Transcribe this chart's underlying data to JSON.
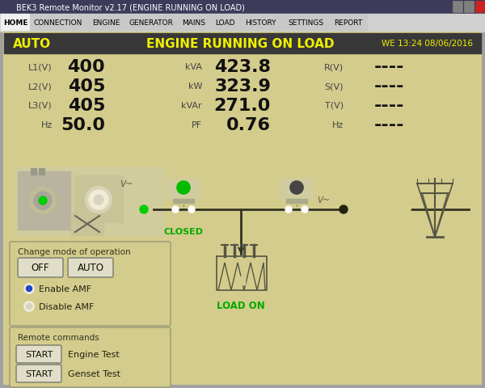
{
  "title_bar": "BEK3 Remote Monitor v2.17 (ENGINE RUNNING ON LOAD)",
  "tabs": [
    "HOME",
    "CONNECTION",
    "ENGINE",
    "GENERATOR",
    "MAINS",
    "LOAD",
    "HISTORY",
    "SETTINGS",
    "REPORT"
  ],
  "active_tab": "HOME",
  "status_text": "ENGINE RUNNING ON LOAD",
  "mode_text": "AUTO",
  "datetime_text": "WE 13:24 08/06/2016",
  "metrics_left": [
    [
      "L1(V)",
      "400"
    ],
    [
      "L2(V)",
      "405"
    ],
    [
      "L3(V)",
      "405"
    ],
    [
      "Hz",
      "50.0"
    ]
  ],
  "metrics_mid": [
    [
      "kVA",
      "423.8"
    ],
    [
      "kW",
      "323.9"
    ],
    [
      "kVAr",
      "271.0"
    ],
    [
      "PF",
      "0.76"
    ]
  ],
  "metrics_right": [
    [
      "R(V)",
      "----"
    ],
    [
      "S(V)",
      "----"
    ],
    [
      "T(V)",
      "----"
    ],
    [
      "Hz",
      "----"
    ]
  ],
  "bg_color": "#d4cc8c",
  "title_bg": "#3c3c5a",
  "status_bar_bg": "#383838",
  "status_bar_fg": "#f0f000",
  "closed_label": "CLOSED",
  "load_label": "LOAD ON",
  "change_mode_label": "Change mode of operation",
  "remote_cmd_label": "Remote commands",
  "radio_labels": [
    "Enable AMF",
    "Disable AMF"
  ],
  "start_labels": [
    "Engine Test",
    "Genset Test"
  ]
}
